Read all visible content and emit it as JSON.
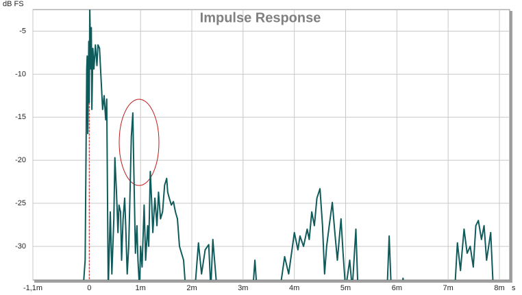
{
  "chart_data": {
    "type": "line",
    "title": "Impulse Response",
    "y_label": "dB FS",
    "x_label": "s",
    "xlim": [
      -1.1,
      8.2
    ],
    "ylim": [
      -33.9,
      -2.5
    ],
    "xticks": [
      {
        "value": -1.1,
        "label": "-1,1m"
      },
      0,
      {
        "value": 1,
        "label": "1m"
      },
      {
        "value": 2,
        "label": "2m"
      },
      {
        "value": 3,
        "label": "3m"
      },
      {
        "value": 4,
        "label": "4m"
      },
      {
        "value": 5,
        "label": "5m"
      },
      {
        "value": 6,
        "label": "6m"
      },
      {
        "value": 7,
        "label": "7m"
      },
      {
        "value": 8,
        "label": "8m"
      }
    ],
    "yticks": [
      -5,
      -10,
      -15,
      -20,
      -25,
      -30
    ],
    "grid": true,
    "series": [
      {
        "name": "Impulse Response",
        "color": "#0f5a5a",
        "x": [
          -0.12,
          -0.08,
          -0.05,
          -0.04,
          -0.03,
          -0.01,
          0,
          0.01,
          0.03,
          0.04,
          0.05,
          0.07,
          0.09,
          0.12,
          0.15,
          0.17,
          0.2,
          0.22,
          0.26,
          0.29,
          0.32,
          0.34,
          0.37,
          0.41,
          0.44,
          0.48,
          0.5,
          0.53,
          0.56,
          0.58,
          0.61,
          0.63,
          0.66,
          0.69,
          0.71,
          0.74,
          0.77,
          0.79,
          0.82,
          0.85,
          0.87,
          0.9,
          0.93,
          0.95,
          0.98,
          1.0,
          1.03,
          1.07,
          1.1,
          1.14,
          1.16,
          1.19,
          1.22,
          1.24,
          1.28,
          1.32,
          1.35,
          1.39,
          1.43,
          1.47,
          1.51,
          1.53,
          1.56,
          1.6,
          1.64,
          1.68,
          1.72,
          1.76,
          1.8,
          1.84,
          1.88,
          2.06,
          2.13,
          2.19,
          2.26,
          2.33,
          2.37,
          2.41,
          2.49,
          3.19,
          3.23,
          3.27,
          3.72,
          3.81,
          3.89,
          4.0,
          4.07,
          4.11,
          4.18,
          4.25,
          4.29,
          4.34,
          4.39,
          4.44,
          4.5,
          4.55,
          4.59,
          4.63,
          4.68,
          4.74,
          4.79,
          4.84,
          4.91,
          4.95,
          5.0,
          5.08,
          5.13,
          5.2,
          5.24,
          5.81,
          5.85,
          5.89,
          6.1,
          6.12,
          6.15,
          7.13,
          7.18,
          7.24,
          7.31,
          7.37,
          7.43,
          7.49,
          7.54,
          7.59,
          7.65,
          7.7,
          7.75,
          7.83,
          7.88
        ],
        "values": [
          -35,
          -31.6,
          -9.4,
          -7.9,
          -16.9,
          -6.2,
          -13.3,
          -2.5,
          -9.4,
          -4.6,
          -14.1,
          -7,
          -9.4,
          -6.6,
          -9,
          -6.6,
          -7,
          -9.4,
          -14.1,
          -12.5,
          -15.3,
          -12.9,
          -35,
          -26,
          -33.2,
          -26.8,
          -19.7,
          -23.7,
          -28.4,
          -25.2,
          -26,
          -31.6,
          -26.8,
          -24.4,
          -27.6,
          -33.2,
          -30,
          -25.2,
          -17.3,
          -14.5,
          -21.3,
          -30.8,
          -27.6,
          -31.6,
          -35,
          -30,
          -32.4,
          -25.2,
          -31.6,
          -27.6,
          -30,
          -21.3,
          -25.2,
          -28.4,
          -24.4,
          -27.6,
          -23.7,
          -26.8,
          -26,
          -22.9,
          -22.1,
          -23.7,
          -24.4,
          -25.2,
          -24.8,
          -26,
          -26.8,
          -30,
          -30.8,
          -31.6,
          -35,
          -35,
          -29.6,
          -33.2,
          -30.4,
          -29.8,
          -35,
          -29.2,
          -35,
          -35,
          -31.6,
          -35,
          -35,
          -31.2,
          -33.2,
          -28.4,
          -30.4,
          -28.8,
          -30,
          -28,
          -29.2,
          -26,
          -27.6,
          -24.4,
          -23.3,
          -27.6,
          -33.2,
          -30,
          -27.6,
          -24.9,
          -28.4,
          -31.6,
          -26.8,
          -30.8,
          -35,
          -31.6,
          -35,
          -28,
          -35,
          -35,
          -28.8,
          -35,
          -35,
          -33.7,
          -35,
          -35,
          -29.6,
          -32.8,
          -28,
          -30.8,
          -30,
          -32.4,
          -27.6,
          -27,
          -29.2,
          -27.6,
          -31.6,
          -28.4,
          -35
        ]
      }
    ]
  }
}
